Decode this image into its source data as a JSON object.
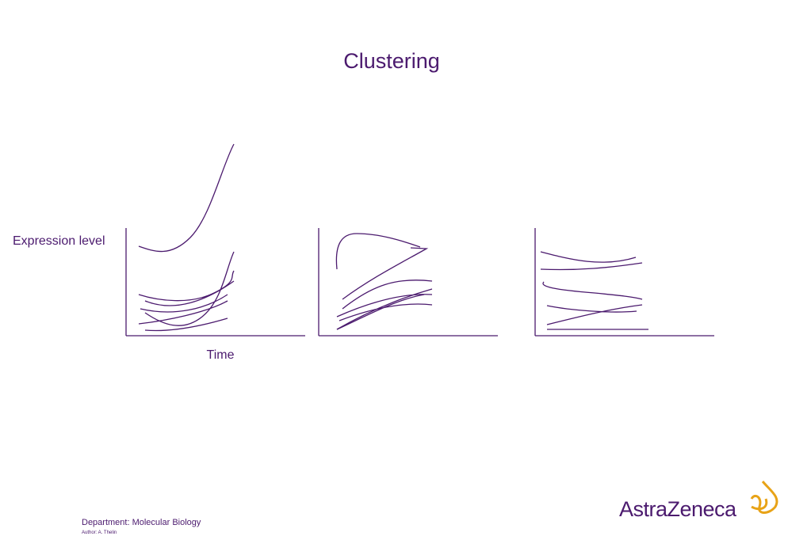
{
  "title": "Clustering",
  "axis_labels": {
    "y": "Expression level",
    "x": "Time"
  },
  "footer": {
    "department": "Department: Molecular Biology",
    "author": "Author: A. Thelin"
  },
  "logo": "AstraZeneca"
}
